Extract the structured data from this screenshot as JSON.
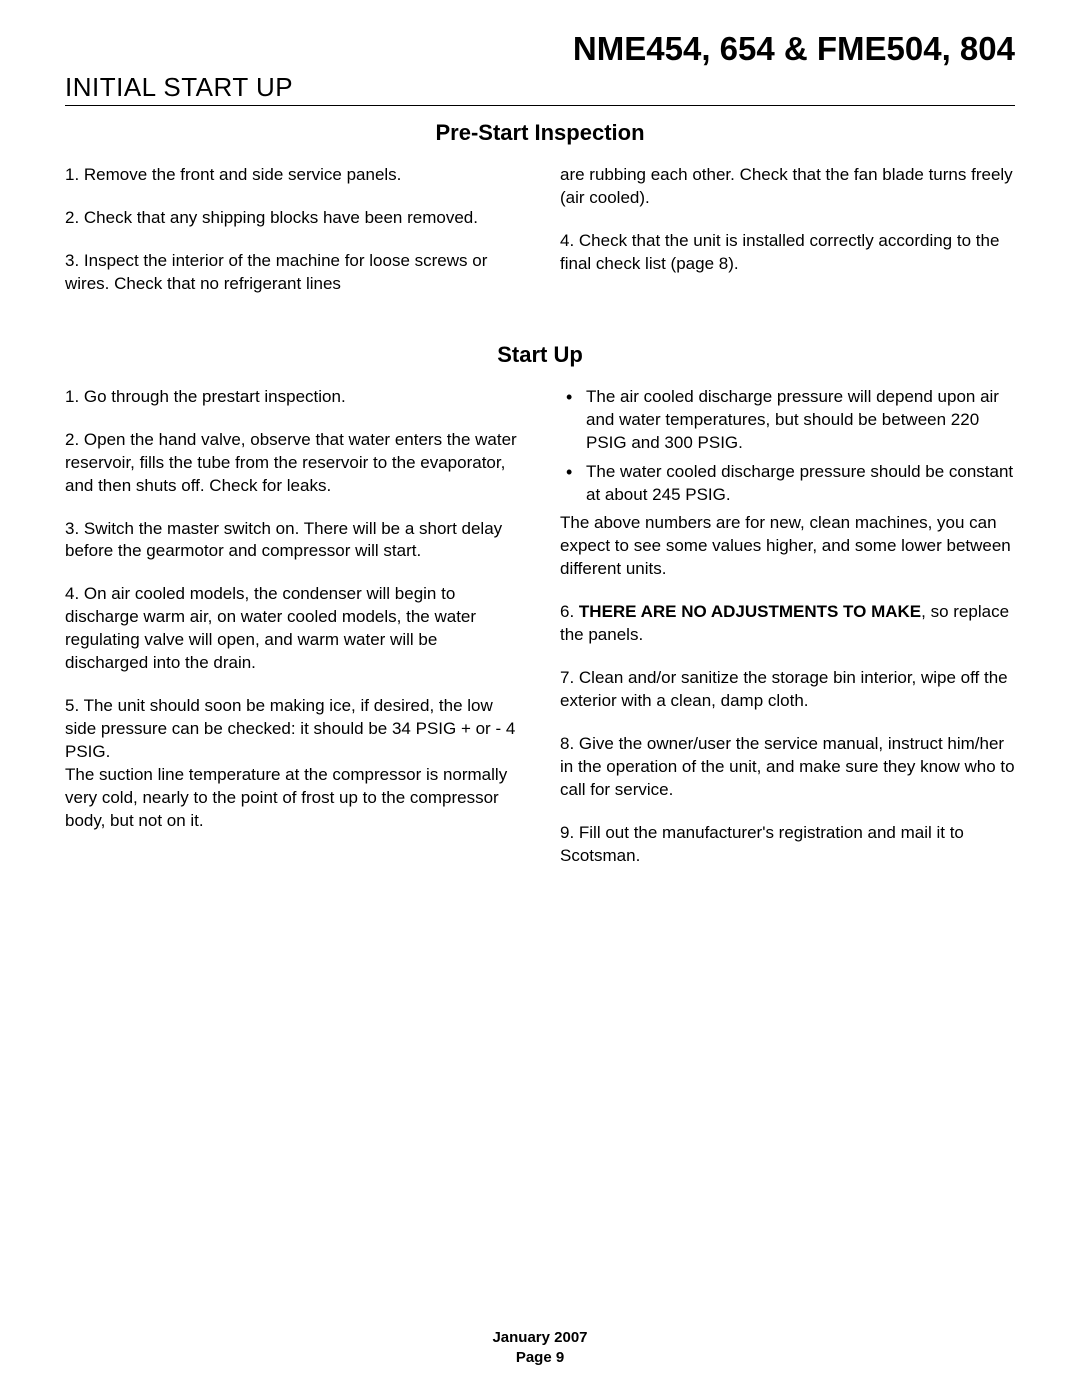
{
  "header": {
    "models": "NME454, 654 & FME504, 804",
    "section": "INITIAL START UP"
  },
  "prestart": {
    "heading": "Pre-Start Inspection",
    "left": [
      "1. Remove the front and side service panels.",
      "2.  Check that any shipping blocks have been removed.",
      "3. Inspect the interior of the machine for loose screws or wires.  Check that no refrigerant lines"
    ],
    "right": [
      "are rubbing each other. Check that the fan blade turns freely (air cooled).",
      "4. Check that the unit is installed correctly according to the final check list (page 8)."
    ]
  },
  "startup": {
    "heading": "Start Up",
    "left": [
      "1. Go through the prestart inspection.",
      "2. Open the hand valve, observe that water enters the water reservoir, fills the tube from the reservoir to the evaporator, and then shuts off. Check for leaks.",
      "3. Switch the master switch on. There will be a short delay before the gearmotor and compressor will start.",
      "4. On air cooled models, the condenser will begin to discharge warm air, on water cooled models, the water regulating valve will open, and warm water will be discharged into the drain.",
      "5. The unit should soon be making ice, if desired, the low side pressure can be checked: it should be 34 PSIG + or - 4 PSIG.",
      "The suction line temperature at the compressor is normally very cold, nearly to the point of frost up to the compressor body, but not on it."
    ],
    "right_bullets": [
      "The air cooled discharge pressure will depend upon air and water temperatures, but should be between 220 PSIG and 300 PSIG.",
      "The water cooled discharge pressure should be constant at about 245 PSIG."
    ],
    "right_after_bullets": "The above numbers are for new, clean machines, you can expect to see some values higher, and some lower between different units.",
    "right_step6_prefix": "6. ",
    "right_step6_bold": "THERE ARE NO ADJUSTMENTS TO MAKE",
    "right_step6_suffix": ", so replace the panels.",
    "right_rest": [
      "7. Clean and/or sanitize the storage bin interior, wipe off the exterior with a clean, damp cloth.",
      "8. Give the owner/user the service manual, instruct him/her in the operation of the unit, and make sure they know who to call for service.",
      "9. Fill out the manufacturer's registration and mail it to Scotsman."
    ]
  },
  "footer": {
    "date": "January 2007",
    "page": "Page 9"
  }
}
